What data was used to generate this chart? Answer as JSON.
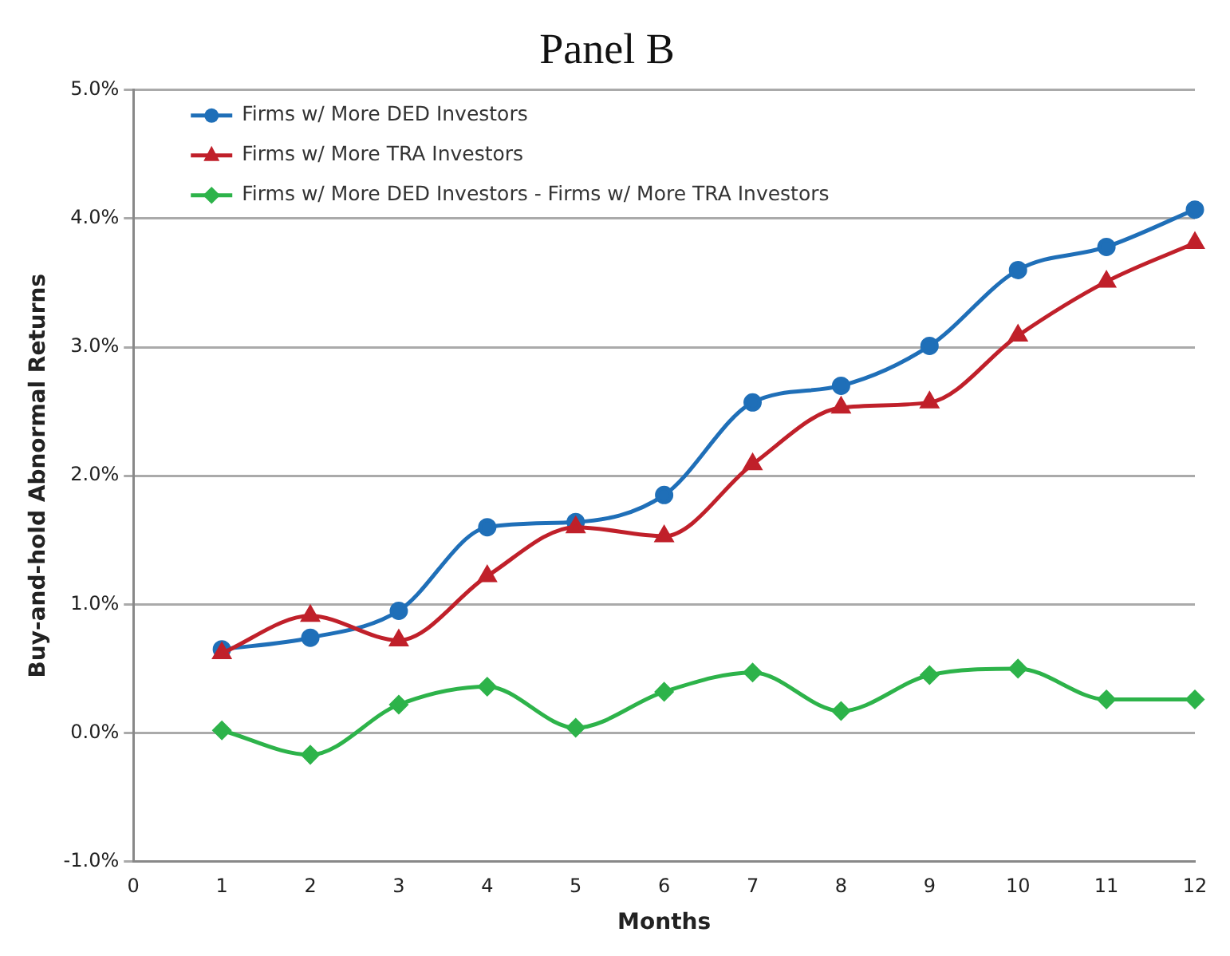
{
  "chart_data": {
    "type": "line",
    "title": "Panel B",
    "xlabel": "Months",
    "ylabel": "Buy-and-hold Abnormal Returns",
    "x": [
      1,
      2,
      3,
      4,
      5,
      6,
      7,
      8,
      9,
      10,
      11,
      12
    ],
    "series": [
      {
        "name": "Firms w/ More DED Investors",
        "color": "#1f6fb8",
        "marker": "circle",
        "values": [
          0.65,
          0.74,
          0.95,
          1.6,
          1.64,
          1.85,
          2.57,
          2.7,
          3.01,
          3.6,
          3.78,
          4.07
        ]
      },
      {
        "name": "Firms w/ More TRA Investors",
        "color": "#c0202a",
        "marker": "triangle",
        "values": [
          0.62,
          0.91,
          0.72,
          1.22,
          1.6,
          1.53,
          2.09,
          2.53,
          2.57,
          3.09,
          3.51,
          3.81
        ]
      },
      {
        "name": "Firms w/ More DED Investors - Firms w/ More TRA Investors",
        "color": "#2db34a",
        "marker": "diamond",
        "values": [
          0.02,
          -0.17,
          0.22,
          0.36,
          0.04,
          0.32,
          0.47,
          0.17,
          0.45,
          0.5,
          0.26,
          0.26
        ]
      }
    ],
    "xlim": [
      0,
      12
    ],
    "xticks": [
      0,
      1,
      2,
      3,
      4,
      5,
      6,
      7,
      8,
      9,
      10,
      11,
      12
    ],
    "ylim": [
      -1,
      5
    ],
    "yticks": [
      {
        "value": -1,
        "label": "-1.0%"
      },
      {
        "value": 0,
        "label": "0.0%"
      },
      {
        "value": 1,
        "label": "1.0%"
      },
      {
        "value": 2,
        "label": "2.0%"
      },
      {
        "value": 3,
        "label": "3.0%"
      },
      {
        "value": 4,
        "label": "4.0%"
      },
      {
        "value": 5,
        "label": "5.0%"
      }
    ],
    "grid": "y",
    "legend": "top left",
    "line_style": "solid"
  }
}
